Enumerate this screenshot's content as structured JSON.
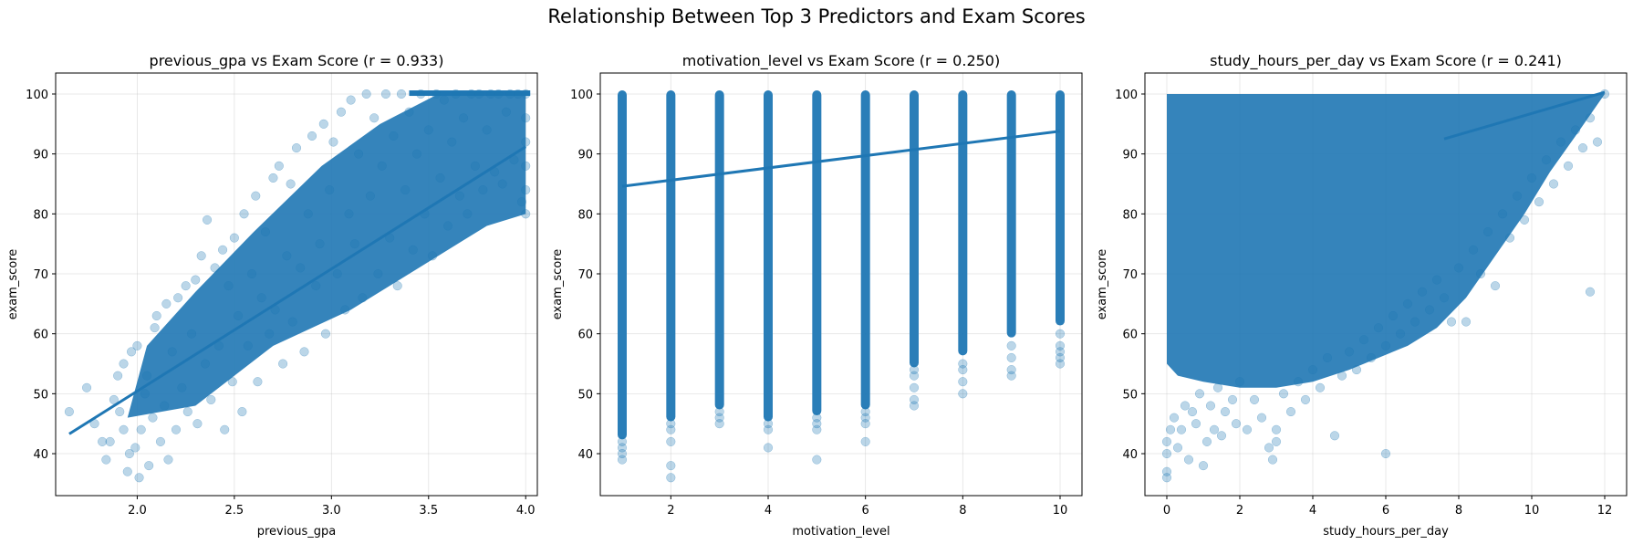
{
  "figure": {
    "title": "Relationship Between Top 3 Predictors and Exam Scores"
  },
  "chart_data": [
    {
      "type": "scatter",
      "title": "previous_gpa vs Exam Score (r = 0.933)",
      "xlabel": "previous_gpa",
      "ylabel": "exam_score",
      "xlim": [
        1.58,
        4.06
      ],
      "ylim": [
        33,
        103.5
      ],
      "xticks": [
        2.0,
        2.5,
        3.0,
        3.5,
        4.0
      ],
      "xtick_labels": [
        "2.0",
        "2.5",
        "3.0",
        "3.5",
        "4.0"
      ],
      "yticks": [
        40,
        50,
        60,
        70,
        80,
        90,
        100
      ],
      "ytick_labels": [
        "40",
        "50",
        "60",
        "70",
        "80",
        "90",
        "100"
      ],
      "grid": true,
      "point_color": "#1f77b4",
      "point_alpha": 0.3,
      "regression_line": {
        "x": [
          1.65,
          4.0
        ],
        "y": [
          43.3,
          91.2
        ]
      },
      "r": 0.933,
      "points": [
        [
          1.65,
          47
        ],
        [
          1.74,
          51
        ],
        [
          1.78,
          45
        ],
        [
          1.82,
          42
        ],
        [
          1.84,
          39
        ],
        [
          1.86,
          42
        ],
        [
          1.88,
          49
        ],
        [
          1.9,
          53
        ],
        [
          1.91,
          47
        ],
        [
          1.93,
          44
        ],
        [
          1.93,
          55
        ],
        [
          1.95,
          37
        ],
        [
          1.96,
          40
        ],
        [
          1.97,
          57
        ],
        [
          1.99,
          41
        ],
        [
          2.0,
          58
        ],
        [
          2.01,
          36
        ],
        [
          2.02,
          44
        ],
        [
          2.04,
          50
        ],
        [
          2.05,
          53
        ],
        [
          2.06,
          38
        ],
        [
          2.08,
          46
        ],
        [
          2.09,
          61
        ],
        [
          2.1,
          63
        ],
        [
          2.12,
          42
        ],
        [
          2.14,
          48
        ],
        [
          2.15,
          65
        ],
        [
          2.16,
          39
        ],
        [
          2.18,
          57
        ],
        [
          2.2,
          44
        ],
        [
          2.21,
          66
        ],
        [
          2.23,
          51
        ],
        [
          2.25,
          68
        ],
        [
          2.26,
          47
        ],
        [
          2.28,
          60
        ],
        [
          2.3,
          69
        ],
        [
          2.31,
          45
        ],
        [
          2.33,
          73
        ],
        [
          2.35,
          55
        ],
        [
          2.36,
          79
        ],
        [
          2.38,
          49
        ],
        [
          2.4,
          71
        ],
        [
          2.42,
          58
        ],
        [
          2.44,
          74
        ],
        [
          2.45,
          44
        ],
        [
          2.47,
          68
        ],
        [
          2.49,
          52
        ],
        [
          2.5,
          76
        ],
        [
          2.52,
          63
        ],
        [
          2.54,
          47
        ],
        [
          2.55,
          80
        ],
        [
          2.57,
          58
        ],
        [
          2.59,
          70
        ],
        [
          2.61,
          83
        ],
        [
          2.62,
          52
        ],
        [
          2.64,
          66
        ],
        [
          2.66,
          77
        ],
        [
          2.68,
          60
        ],
        [
          2.7,
          86
        ],
        [
          2.71,
          64
        ],
        [
          2.73,
          88
        ],
        [
          2.75,
          55
        ],
        [
          2.77,
          73
        ],
        [
          2.79,
          85
        ],
        [
          2.8,
          62
        ],
        [
          2.82,
          91
        ],
        [
          2.84,
          71
        ],
        [
          2.86,
          57
        ],
        [
          2.88,
          80
        ],
        [
          2.9,
          93
        ],
        [
          2.92,
          68
        ],
        [
          2.94,
          75
        ],
        [
          2.96,
          95
        ],
        [
          2.97,
          60
        ],
        [
          2.99,
          84
        ],
        [
          3.01,
          92
        ],
        [
          3.03,
          70
        ],
        [
          3.05,
          97
        ],
        [
          3.07,
          64
        ],
        [
          3.09,
          80
        ],
        [
          3.1,
          99
        ],
        [
          3.12,
          75
        ],
        [
          3.14,
          90
        ],
        [
          3.16,
          66
        ],
        [
          3.18,
          100
        ],
        [
          3.2,
          83
        ],
        [
          3.22,
          96
        ],
        [
          3.24,
          70
        ],
        [
          3.26,
          88
        ],
        [
          3.28,
          100
        ],
        [
          3.3,
          76
        ],
        [
          3.32,
          93
        ],
        [
          3.34,
          68
        ],
        [
          3.36,
          100
        ],
        [
          3.38,
          84
        ],
        [
          3.4,
          97
        ],
        [
          3.42,
          74
        ],
        [
          3.44,
          90
        ],
        [
          3.46,
          100
        ],
        [
          3.48,
          80
        ],
        [
          3.5,
          94
        ],
        [
          3.52,
          73
        ],
        [
          3.54,
          100
        ],
        [
          3.56,
          86
        ],
        [
          3.58,
          99
        ],
        [
          3.6,
          78
        ],
        [
          3.62,
          92
        ],
        [
          3.64,
          100
        ],
        [
          3.66,
          83
        ],
        [
          3.68,
          96
        ],
        [
          3.7,
          80
        ],
        [
          3.72,
          100
        ],
        [
          3.74,
          88
        ],
        [
          3.76,
          100
        ],
        [
          3.78,
          84
        ],
        [
          3.8,
          94
        ],
        [
          3.82,
          100
        ],
        [
          3.84,
          87
        ],
        [
          3.86,
          100
        ],
        [
          3.88,
          85
        ],
        [
          3.9,
          97
        ],
        [
          3.92,
          100
        ],
        [
          3.94,
          89
        ],
        [
          3.96,
          100
        ],
        [
          3.98,
          82
        ],
        [
          4.0,
          80
        ],
        [
          4.0,
          84
        ],
        [
          4.0,
          88
        ],
        [
          4.0,
          92
        ],
        [
          4.0,
          96
        ],
        [
          4.0,
          100
        ]
      ]
    },
    {
      "type": "scatter",
      "title": "motivation_level vs Exam Score (r = 0.250)",
      "xlabel": "motivation_level",
      "ylabel": "exam_score",
      "xlim": [
        0.55,
        10.45
      ],
      "ylim": [
        33,
        103.5
      ],
      "xticks": [
        2,
        4,
        6,
        8,
        10
      ],
      "xtick_labels": [
        "2",
        "4",
        "6",
        "8",
        "10"
      ],
      "yticks": [
        40,
        50,
        60,
        70,
        80,
        90,
        100
      ],
      "ytick_labels": [
        "40",
        "50",
        "60",
        "70",
        "80",
        "90",
        "100"
      ],
      "grid": true,
      "point_color": "#1f77b4",
      "point_alpha": 0.3,
      "regression_line": {
        "x": [
          1,
          10
        ],
        "y": [
          84.6,
          93.8
        ]
      },
      "r": 0.25,
      "columns": [
        {
          "x": 1,
          "solid_range": [
            43,
            100
          ],
          "sparse": [
            39,
            40,
            41,
            42
          ]
        },
        {
          "x": 2,
          "solid_range": [
            46,
            100
          ],
          "sparse": [
            36,
            38,
            42,
            44,
            45
          ]
        },
        {
          "x": 3,
          "solid_range": [
            48,
            100
          ],
          "sparse": [
            45,
            46,
            47
          ]
        },
        {
          "x": 4,
          "solid_range": [
            46,
            100
          ],
          "sparse": [
            41,
            44,
            45
          ]
        },
        {
          "x": 5,
          "solid_range": [
            47,
            100
          ],
          "sparse": [
            39,
            44,
            45,
            46
          ]
        },
        {
          "x": 6,
          "solid_range": [
            48,
            100
          ],
          "sparse": [
            42,
            45,
            46,
            47
          ]
        },
        {
          "x": 7,
          "solid_range": [
            55,
            100
          ],
          "sparse": [
            48,
            49,
            51,
            53,
            54
          ]
        },
        {
          "x": 8,
          "solid_range": [
            57,
            100
          ],
          "sparse": [
            50,
            52,
            54,
            55
          ]
        },
        {
          "x": 9,
          "solid_range": [
            60,
            100
          ],
          "sparse": [
            53,
            54,
            56,
            58
          ]
        },
        {
          "x": 10,
          "solid_range": [
            62,
            100
          ],
          "sparse": [
            55,
            56,
            57,
            58,
            60
          ]
        }
      ]
    },
    {
      "type": "scatter",
      "title": "study_hours_per_day vs Exam Score (r = 0.241)",
      "xlabel": "study_hours_per_day",
      "ylabel": "exam_score",
      "xlim": [
        -0.6,
        12.6
      ],
      "ylim": [
        33,
        103.5
      ],
      "xticks": [
        0,
        2,
        4,
        6,
        8,
        10,
        12
      ],
      "xtick_labels": [
        "0",
        "2",
        "4",
        "6",
        "8",
        "10",
        "12"
      ],
      "yticks": [
        40,
        50,
        60,
        70,
        80,
        90,
        100
      ],
      "ytick_labels": [
        "40",
        "50",
        "60",
        "70",
        "80",
        "90",
        "100"
      ],
      "grid": true,
      "point_color": "#1f77b4",
      "point_alpha": 0.3,
      "regression_line": {
        "x": [
          7.6,
          12.0
        ],
        "y": [
          92.5,
          100.3
        ]
      },
      "r": 0.241,
      "points": [
        [
          0.0,
          36
        ],
        [
          0.0,
          37
        ],
        [
          0.0,
          40
        ],
        [
          0.0,
          42
        ],
        [
          0.1,
          44
        ],
        [
          0.2,
          46
        ],
        [
          0.3,
          41
        ],
        [
          0.4,
          44
        ],
        [
          0.5,
          48
        ],
        [
          0.6,
          39
        ],
        [
          0.7,
          47
        ],
        [
          0.8,
          45
        ],
        [
          0.9,
          50
        ],
        [
          1.0,
          38
        ],
        [
          1.1,
          42
        ],
        [
          1.2,
          48
        ],
        [
          1.3,
          44
        ],
        [
          1.4,
          51
        ],
        [
          1.5,
          43
        ],
        [
          1.6,
          47
        ],
        [
          1.8,
          49
        ],
        [
          1.9,
          45
        ],
        [
          2.0,
          52
        ],
        [
          2.2,
          44
        ],
        [
          2.4,
          49
        ],
        [
          2.6,
          46
        ],
        [
          2.8,
          41
        ],
        [
          2.9,
          39
        ],
        [
          3.0,
          44
        ],
        [
          3.0,
          42
        ],
        [
          3.2,
          50
        ],
        [
          3.4,
          47
        ],
        [
          3.6,
          52
        ],
        [
          3.8,
          49
        ],
        [
          4.0,
          54
        ],
        [
          4.2,
          51
        ],
        [
          4.4,
          56
        ],
        [
          4.6,
          43
        ],
        [
          4.8,
          53
        ],
        [
          5.0,
          57
        ],
        [
          5.2,
          54
        ],
        [
          5.4,
          59
        ],
        [
          5.6,
          56
        ],
        [
          5.8,
          61
        ],
        [
          6.0,
          40
        ],
        [
          6.0,
          58
        ],
        [
          6.2,
          63
        ],
        [
          6.4,
          60
        ],
        [
          6.6,
          65
        ],
        [
          6.8,
          62
        ],
        [
          7.0,
          67
        ],
        [
          7.2,
          64
        ],
        [
          7.4,
          69
        ],
        [
          7.6,
          66
        ],
        [
          7.8,
          62
        ],
        [
          8.0,
          71
        ],
        [
          8.2,
          62
        ],
        [
          8.4,
          74
        ],
        [
          8.6,
          70
        ],
        [
          8.8,
          77
        ],
        [
          9.0,
          68
        ],
        [
          9.2,
          80
        ],
        [
          9.4,
          76
        ],
        [
          9.6,
          83
        ],
        [
          9.8,
          79
        ],
        [
          10.0,
          86
        ],
        [
          10.2,
          82
        ],
        [
          10.4,
          89
        ],
        [
          10.6,
          85
        ],
        [
          10.8,
          92
        ],
        [
          11.0,
          88
        ],
        [
          11.2,
          94
        ],
        [
          11.4,
          91
        ],
        [
          11.6,
          67
        ],
        [
          11.6,
          96
        ],
        [
          11.8,
          92
        ],
        [
          12.0,
          100
        ]
      ]
    }
  ]
}
